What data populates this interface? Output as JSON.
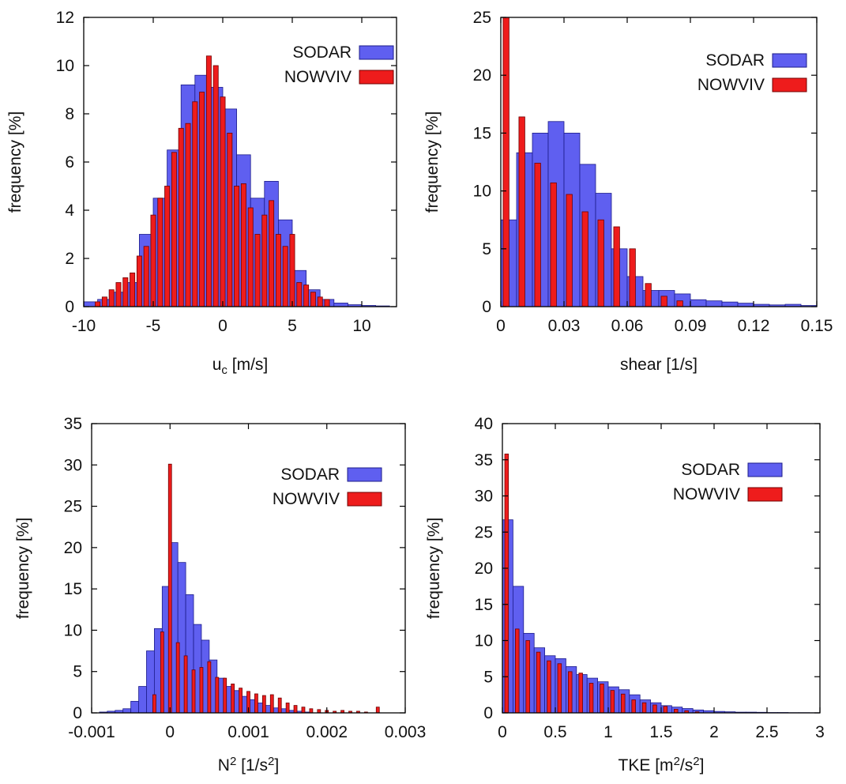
{
  "colors": {
    "sodar_fill": "#5f5ff0",
    "sodar_stroke": "#1c1c8a",
    "nowviv_fill": "#ee1c1c",
    "nowviv_stroke": "#700000",
    "axis": "#000000"
  },
  "chart_data": [
    {
      "type": "bar",
      "xlabel": "u",
      "xlabel_sub": "c",
      "xlabel_unit": " [m/s]",
      "ylabel": "frequency [%]",
      "xlim": [
        -10,
        12.5
      ],
      "ylim": [
        0,
        12
      ],
      "xticks": [
        "-10",
        "-5",
        "0",
        "5",
        "10"
      ],
      "xtick_values": [
        -10,
        -5,
        0,
        5,
        10
      ],
      "yticks": [
        "0",
        "2",
        "4",
        "6",
        "8",
        "10",
        "12"
      ],
      "ytick_values": [
        0,
        2,
        4,
        6,
        8,
        10,
        12
      ],
      "legend_position": "top-right",
      "series": [
        {
          "name": "SODAR",
          "bin_width": 1,
          "x": [
            -9.5,
            -8.5,
            -7.5,
            -6.5,
            -5.5,
            -4.5,
            -3.5,
            -2.5,
            -1.5,
            -0.5,
            0.5,
            1.5,
            2.5,
            3.5,
            4.5,
            5.5,
            6.5,
            7.5,
            8.5,
            9.5,
            10.5,
            11.5
          ],
          "values": [
            0.2,
            0.3,
            0.6,
            1.0,
            3.0,
            4.5,
            6.5,
            9.2,
            9.6,
            9.1,
            8.2,
            6.3,
            4.5,
            5.2,
            3.6,
            1.5,
            0.7,
            0.3,
            0.15,
            0.08,
            0.05,
            0.03
          ]
        },
        {
          "name": "NOWVIV",
          "bar_width": 0.35,
          "x": [
            -9,
            -8.5,
            -8,
            -7.5,
            -7,
            -6.5,
            -6,
            -5.5,
            -5,
            -4.5,
            -4,
            -3.5,
            -3,
            -2.5,
            -2,
            -1.5,
            -1,
            -0.5,
            0,
            0.5,
            1,
            1.5,
            2,
            2.5,
            3,
            3.5,
            4,
            4.5,
            5,
            5.5,
            6,
            6.5,
            7,
            7.5
          ],
          "values": [
            0.2,
            0.4,
            0.7,
            1.0,
            1.2,
            1.4,
            2.1,
            2.5,
            3.8,
            4.5,
            5.0,
            6.4,
            7.4,
            7.6,
            8.5,
            8.9,
            10.4,
            10.0,
            8.7,
            7.2,
            5.0,
            5.1,
            4.1,
            3.0,
            3.8,
            4.4,
            3.0,
            2.5,
            3.0,
            1.0,
            0.9,
            0.6,
            0.4,
            0.3
          ]
        }
      ]
    },
    {
      "type": "bar",
      "xlabel": "shear [1/s]",
      "ylabel": "frequency [%]",
      "xlim": [
        0,
        0.15
      ],
      "ylim": [
        0,
        25
      ],
      "xticks": [
        "0",
        "0.03",
        "0.06",
        "0.09",
        "0.12",
        "0.15"
      ],
      "xtick_values": [
        0,
        0.03,
        0.06,
        0.09,
        0.12,
        0.15
      ],
      "yticks": [
        "0",
        "5",
        "10",
        "15",
        "20",
        "25"
      ],
      "ytick_values": [
        0,
        5,
        10,
        15,
        20,
        25
      ],
      "legend_position": "top-right",
      "series": [
        {
          "name": "SODAR",
          "bin_width": 0.0075,
          "x": [
            0.00375,
            0.01125,
            0.01875,
            0.02625,
            0.03375,
            0.04125,
            0.04875,
            0.05625,
            0.06375,
            0.07125,
            0.07875,
            0.08625,
            0.09375,
            0.10125,
            0.10875,
            0.11625,
            0.12375,
            0.13125,
            0.13875,
            0.14625
          ],
          "values": [
            7.5,
            13.3,
            15.0,
            16.0,
            15.0,
            12.3,
            9.8,
            5.0,
            2.6,
            1.4,
            1.4,
            1.1,
            0.6,
            0.5,
            0.4,
            0.3,
            0.2,
            0.15,
            0.2,
            0.1
          ]
        },
        {
          "name": "NOWVIV",
          "bar_width": 0.0028,
          "x": [
            0.0025,
            0.01,
            0.0175,
            0.025,
            0.0325,
            0.04,
            0.0475,
            0.055,
            0.0625,
            0.07,
            0.0775,
            0.085
          ],
          "values": [
            25.0,
            16.4,
            12.4,
            10.7,
            9.7,
            8.2,
            7.5,
            6.9,
            5.0,
            2.0,
            0.9,
            0.5
          ]
        }
      ]
    },
    {
      "type": "bar",
      "xlabel": "N",
      "xlabel_sup": "2",
      "xlabel_unit": " [1/s",
      "xlabel_unit_sup": "2",
      "xlabel_unit_end": "]",
      "ylabel": "frequency [%]",
      "xlim": [
        -0.001,
        0.003
      ],
      "ylim": [
        0,
        35
      ],
      "xticks": [
        "-0.001",
        "0",
        "0.001",
        "0.002",
        "0.003"
      ],
      "xtick_values": [
        -0.001,
        0,
        0.001,
        0.002,
        0.003
      ],
      "yticks": [
        "0",
        "5",
        "10",
        "15",
        "20",
        "25",
        "30",
        "35"
      ],
      "ytick_values": [
        0,
        5,
        10,
        15,
        20,
        25,
        30,
        35
      ],
      "legend_position": "top-right",
      "series": [
        {
          "name": "SODAR",
          "bin_width": 0.0001,
          "x": [
            -0.00085,
            -0.00075,
            -0.00065,
            -0.00055,
            -0.00045,
            -0.00035,
            -0.00025,
            -0.00015,
            -5e-05,
            5e-05,
            0.00015,
            0.00025,
            0.00035,
            0.00045,
            0.00055,
            0.00065,
            0.00075,
            0.00085,
            0.00095,
            0.00105,
            0.00115,
            0.00125,
            0.00135,
            0.00145,
            0.00155,
            0.00165,
            0.00175
          ],
          "values": [
            0.1,
            0.2,
            0.3,
            0.5,
            1.4,
            3.2,
            7.5,
            10.2,
            15.3,
            20.6,
            18.2,
            14.3,
            10.7,
            8.8,
            6.4,
            4.2,
            3.2,
            2.7,
            2.0,
            1.6,
            1.2,
            0.9,
            0.6,
            0.5,
            0.3,
            0.2,
            0.1
          ]
        },
        {
          "name": "NOWVIV",
          "bar_width": 4e-05,
          "x": [
            -0.0002,
            -0.0001,
            0.0,
            0.0001,
            0.0002,
            0.0003,
            0.0004,
            0.0005,
            0.0006,
            0.0007,
            0.0008,
            0.0009,
            0.001,
            0.0011,
            0.0012,
            0.0013,
            0.0014,
            0.0015,
            0.0016,
            0.0017,
            0.0018,
            0.0019,
            0.002,
            0.0021,
            0.0022,
            0.0023,
            0.0024,
            0.0025,
            0.00265
          ],
          "values": [
            2.2,
            9.8,
            30.1,
            8.5,
            6.9,
            5.2,
            5.5,
            6.2,
            4.3,
            4.2,
            3.5,
            3.0,
            2.6,
            2.3,
            2.1,
            2.2,
            1.8,
            1.2,
            0.9,
            0.7,
            0.5,
            0.4,
            0.3,
            0.2,
            0.3,
            0.2,
            0.2,
            0.1,
            0.7
          ]
        }
      ]
    },
    {
      "type": "bar",
      "xlabel": "TKE [m",
      "xlabel_sup": "2",
      "xlabel_unit": "/s",
      "xlabel_unit_sup": "2",
      "xlabel_unit_end": "]",
      "ylabel": "frequency [%]",
      "xlim": [
        0,
        3
      ],
      "ylim": [
        0,
        40
      ],
      "xticks": [
        "0",
        "0.5",
        "1",
        "1.5",
        "2",
        "2.5",
        "3"
      ],
      "xtick_values": [
        0,
        0.5,
        1,
        1.5,
        2,
        2.5,
        3
      ],
      "yticks": [
        "0",
        "5",
        "10",
        "15",
        "20",
        "25",
        "30",
        "35",
        "40"
      ],
      "ytick_values": [
        0,
        5,
        10,
        15,
        20,
        25,
        30,
        35,
        40
      ],
      "legend_position": "top-right",
      "series": [
        {
          "name": "SODAR",
          "bin_width": 0.1,
          "x": [
            0.05,
            0.15,
            0.25,
            0.35,
            0.45,
            0.55,
            0.65,
            0.75,
            0.85,
            0.95,
            1.05,
            1.15,
            1.25,
            1.35,
            1.45,
            1.55,
            1.65,
            1.75,
            1.85,
            1.95,
            2.05,
            2.15,
            2.25,
            2.35,
            2.45,
            2.55,
            2.65,
            2.75,
            2.85,
            2.95
          ],
          "values": [
            26.7,
            17.5,
            11.0,
            9.0,
            7.9,
            7.5,
            6.4,
            5.3,
            4.8,
            4.3,
            3.6,
            3.2,
            2.5,
            1.8,
            1.4,
            1.0,
            0.8,
            0.6,
            0.4,
            0.3,
            0.2,
            0.15,
            0.1,
            0.1,
            0.08,
            0.05,
            0.05,
            0.03,
            0.03,
            0.02
          ]
        },
        {
          "name": "NOWVIV",
          "bar_width": 0.035,
          "x": [
            0.04,
            0.14,
            0.24,
            0.34,
            0.44,
            0.54,
            0.64,
            0.74,
            0.84,
            0.94,
            1.04,
            1.14,
            1.24,
            1.34,
            1.44,
            1.54,
            1.64,
            1.74,
            1.84
          ],
          "values": [
            35.8,
            11.6,
            10.0,
            8.4,
            7.2,
            6.8,
            5.7,
            5.5,
            4.1,
            4.0,
            3.1,
            2.6,
            1.8,
            1.4,
            1.1,
            0.9,
            0.5,
            0.3,
            0.15
          ]
        }
      ]
    }
  ]
}
